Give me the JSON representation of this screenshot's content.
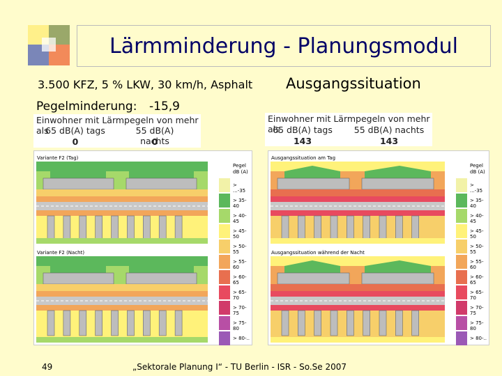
{
  "slide": {
    "title": "Lärmminderung  - Planungsmodul",
    "params": "3.500 KFZ, 5 % LKW, 30 km/h, Asphalt",
    "situation": "Ausgangssituation",
    "pegel_label": "Pegelminderung:",
    "pegel_value": "-15,9",
    "page_number": "49",
    "footer": "„Sektorale Planung I“  -  TU Berlin -  ISR -  So.Se 2007"
  },
  "left_box": {
    "header": "Einwohner mit Lärmpegeln von mehr als",
    "day_label": "65 dB(A) tags",
    "night_label": "55 dB(A) nachts",
    "day_value": "0",
    "night_value": "0"
  },
  "right_box": {
    "header": "Einwohner mit Lärmpegeln von mehr als",
    "day_label": "65 dB(A) tags",
    "night_label": "55 dB(A) nachts",
    "day_value": "143",
    "night_value": "143"
  },
  "left_panel": {
    "caption_day": "Variante F2 (Tag)",
    "caption_night": "Variante F2 (Nacht)"
  },
  "right_panel": {
    "caption_day": "Ausgangssituation am Tag",
    "caption_night": "Ausgangssituation während der Nacht"
  },
  "legend": {
    "title_line1": "Pegel",
    "title_line2": "dB (A)",
    "items": [
      {
        "label": "> ...-35",
        "color": "#f2f2a8"
      },
      {
        "label": "> 35-40",
        "color": "#5cb85c"
      },
      {
        "label": "> 40-45",
        "color": "#a6d96a"
      },
      {
        "label": "> 45-50",
        "color": "#fff27a"
      },
      {
        "label": "> 50-55",
        "color": "#f7cf6a"
      },
      {
        "label": "> 55-60",
        "color": "#f2a65a"
      },
      {
        "label": "> 60-65",
        "color": "#e86f4f"
      },
      {
        "label": "> 65-70",
        "color": "#e84a5f"
      },
      {
        "label": "> 70-75",
        "color": "#d13a6a"
      },
      {
        "label": "> 75-80",
        "color": "#b84fa5"
      },
      {
        "label": "> 80-..",
        "color": "#9b59b6"
      }
    ]
  }
}
